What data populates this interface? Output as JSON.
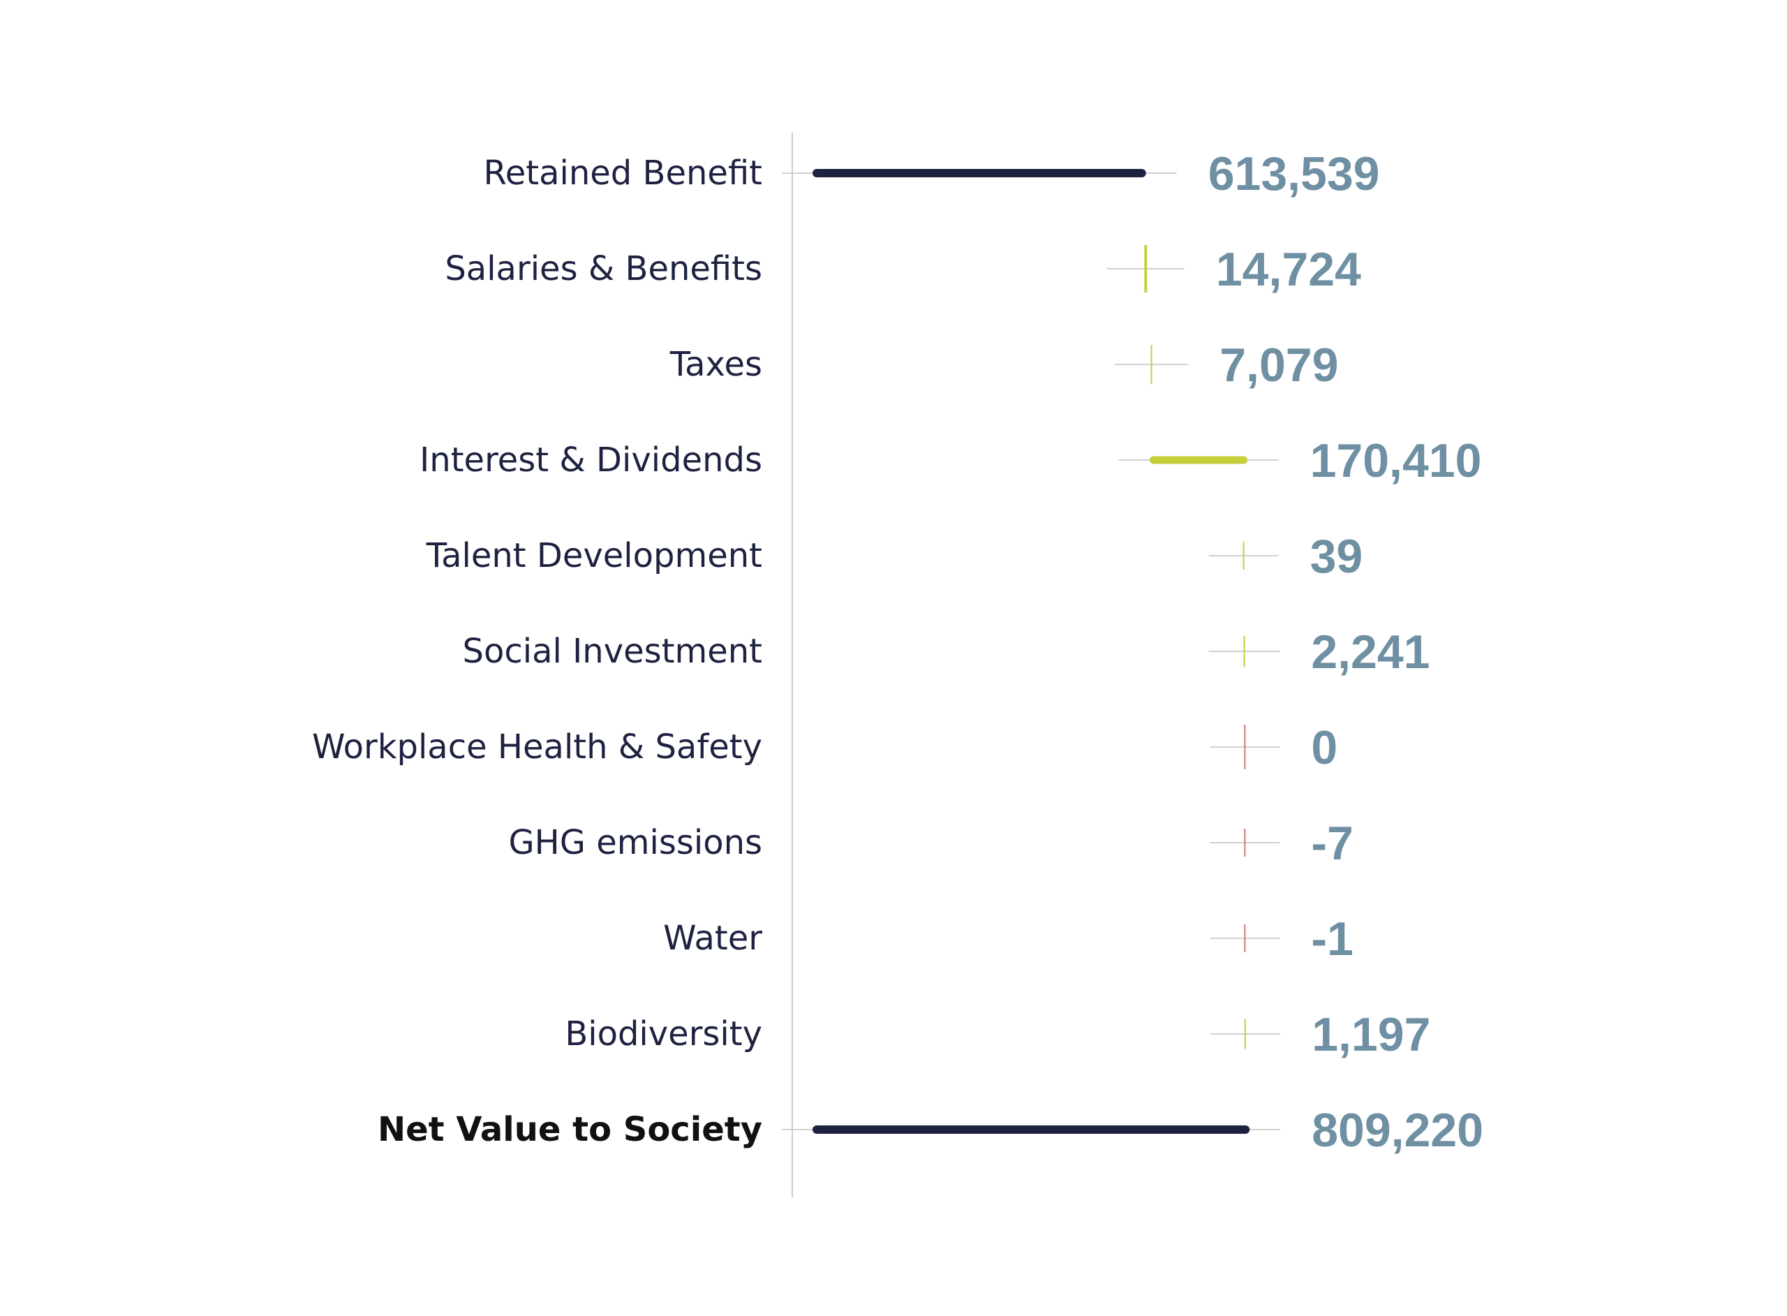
{
  "colors": {
    "total": "#1e2240",
    "positive": "#c4cf3a",
    "negative": "#d9786c",
    "axis": "#cccccc",
    "whisker": "#d0d0d0",
    "value_text": "#6f8fa3",
    "label_text": "#1e2240"
  },
  "chart_data": {
    "type": "waterfall",
    "title": "",
    "xlabel": "",
    "ylabel": "",
    "value_format": "integer-thousands-comma",
    "xlim": [
      0,
      830000
    ],
    "categories": [
      "Retained Benefit",
      "Salaries & Benefits",
      "Taxes",
      "Interest & Dividends",
      "Talent Development",
      "Social Investment",
      "Workplace Health & Safety",
      "GHG emissions",
      "Water",
      "Biodiversity",
      "Net Value to Society"
    ],
    "values": [
      613539,
      14724,
      7079,
      170410,
      39,
      2241,
      0,
      -7,
      -1,
      1197,
      809220
    ],
    "value_labels": [
      "613,539",
      "14,724",
      "7,079",
      "170,410",
      "39",
      "2,241",
      "0",
      "-7",
      "-1",
      "1,197",
      "809,220"
    ],
    "kinds": [
      "total",
      "positive",
      "positive",
      "positive",
      "positive",
      "positive",
      "negative",
      "negative",
      "negative",
      "positive",
      "total"
    ],
    "bold": [
      false,
      false,
      false,
      false,
      false,
      false,
      false,
      false,
      false,
      false,
      true
    ]
  }
}
